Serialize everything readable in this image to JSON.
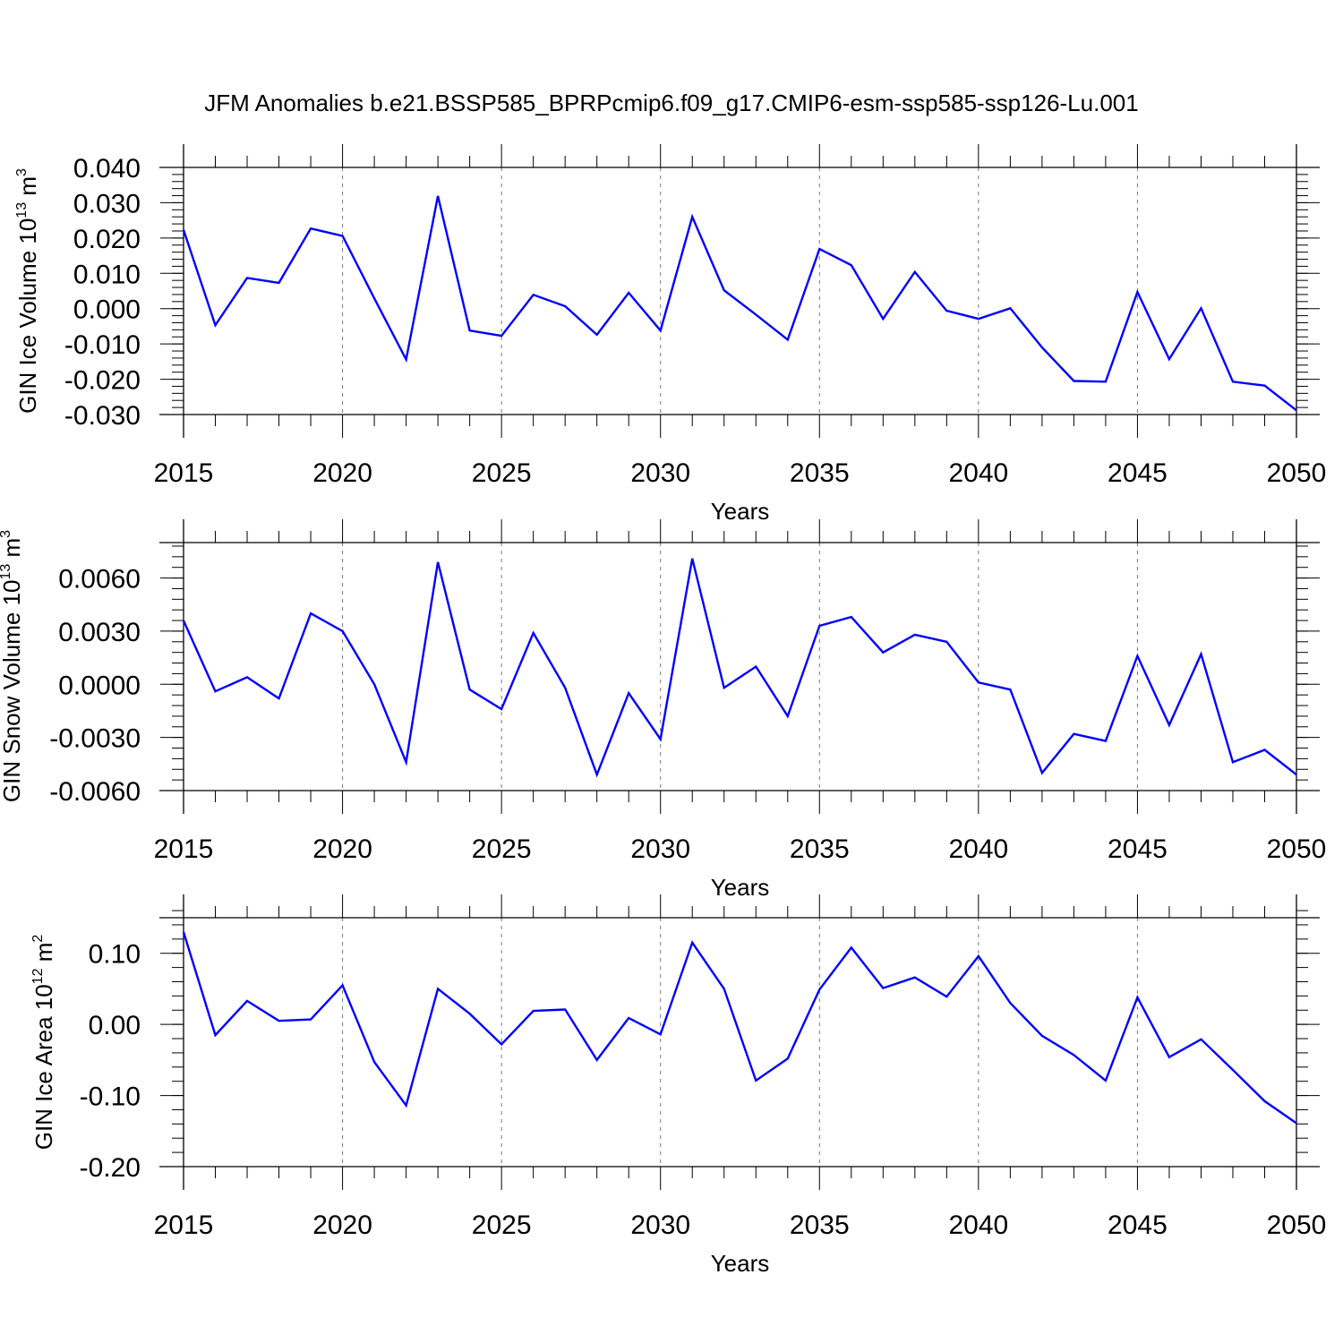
{
  "figure": {
    "title": "JFM Anomalies b.e21.BSSP585_BPRPcmip6.f09_g17.CMIP6-esm-ssp585-ssp126-Lu.001"
  },
  "chart_data": [
    {
      "type": "line",
      "xlabel": "Years",
      "ylabel_main": "GIN Ice Volume 10",
      "ylabel_exp": "13",
      "ylabel_unit": " m",
      "ylabel_unit_exp": "3",
      "xlim": [
        2015,
        2050
      ],
      "ylim": [
        -0.03,
        0.04
      ],
      "x_ticks": [
        2015,
        2020,
        2025,
        2030,
        2035,
        2040,
        2045,
        2050
      ],
      "y_ticks": [
        -0.03,
        -0.02,
        -0.01,
        0.0,
        0.01,
        0.02,
        0.03,
        0.04
      ],
      "y_tick_labels": [
        "-0.030",
        "-0.020",
        "-0.010",
        "0.000",
        "0.010",
        "0.020",
        "0.030",
        "0.040"
      ],
      "y_minor_step": 0.002,
      "grid": "vertical dashed at major x ticks",
      "series_color": "#0000ff",
      "x": [
        2015,
        2016,
        2017,
        2018,
        2019,
        2020,
        2021,
        2022,
        2023,
        2024,
        2025,
        2026,
        2027,
        2028,
        2029,
        2030,
        2031,
        2032,
        2033,
        2034,
        2035,
        2036,
        2037,
        2038,
        2039,
        2040,
        2041,
        2042,
        2043,
        2044,
        2045,
        2046,
        2047,
        2048,
        2049,
        2050
      ],
      "y": [
        0.0223,
        -0.0047,
        0.0087,
        0.0073,
        0.0227,
        0.0206,
        0.0029,
        -0.0144,
        0.0319,
        -0.0062,
        -0.0077,
        0.0039,
        0.0007,
        -0.0074,
        0.0045,
        -0.0062,
        0.026,
        0.0052,
        -0.0017,
        -0.0088,
        0.0169,
        0.0123,
        -0.0029,
        0.0104,
        -0.0006,
        -0.0029,
        0.0001,
        -0.011,
        -0.0205,
        -0.0207,
        0.0047,
        -0.0143,
        0.0001,
        -0.0207,
        -0.0218,
        -0.0288
      ]
    },
    {
      "type": "line",
      "xlabel": "Years",
      "ylabel_main": "GIN Snow Volume 10",
      "ylabel_exp": "13",
      "ylabel_unit": " m",
      "ylabel_unit_exp": "3",
      "xlim": [
        2015,
        2050
      ],
      "ylim": [
        -0.006,
        0.008
      ],
      "x_ticks": [
        2015,
        2020,
        2025,
        2030,
        2035,
        2040,
        2045,
        2050
      ],
      "y_ticks": [
        -0.006,
        -0.003,
        0.0,
        0.003,
        0.006
      ],
      "y_tick_labels": [
        "-0.0060",
        "-0.0030",
        "0.0000",
        "0.0030",
        "0.0060"
      ],
      "y_minor_step": 0.0006,
      "grid": "vertical dashed at major x ticks",
      "series_color": "#0000ff",
      "x": [
        2015,
        2016,
        2017,
        2018,
        2019,
        2020,
        2021,
        2022,
        2023,
        2024,
        2025,
        2026,
        2027,
        2028,
        2029,
        2030,
        2031,
        2032,
        2033,
        2034,
        2035,
        2036,
        2037,
        2038,
        2039,
        2040,
        2041,
        2042,
        2043,
        2044,
        2045,
        2046,
        2047,
        2048,
        2049,
        2050
      ],
      "y": [
        0.0036,
        -0.0004,
        0.0004,
        -0.0008,
        0.004,
        0.003,
        0.0,
        -0.0044,
        0.0069,
        -0.0003,
        -0.0014,
        0.0029,
        -0.0002,
        -0.0051,
        -0.0005,
        -0.0031,
        0.0071,
        -0.0002,
        0.001,
        -0.0018,
        0.0033,
        0.0038,
        0.0018,
        0.0028,
        0.0024,
        0.0001,
        -0.0003,
        -0.005,
        -0.0028,
        -0.0032,
        0.0016,
        -0.0023,
        0.0017,
        -0.0044,
        -0.0037,
        -0.0051
      ]
    },
    {
      "type": "line",
      "xlabel": "Years",
      "ylabel_main": "GIN Ice Area 10",
      "ylabel_exp": "12",
      "ylabel_unit": " m",
      "ylabel_unit_exp": "2",
      "xlim": [
        2015,
        2050
      ],
      "ylim": [
        -0.2,
        0.15
      ],
      "x_ticks": [
        2015,
        2020,
        2025,
        2030,
        2035,
        2040,
        2045,
        2050
      ],
      "y_ticks": [
        -0.2,
        -0.1,
        0.0,
        0.1
      ],
      "y_tick_labels": [
        "-0.20",
        "-0.10",
        "0.00",
        "0.10"
      ],
      "y_minor_step": 0.02,
      "grid": "vertical dashed at major x ticks",
      "series_color": "#0000ff",
      "x": [
        2015,
        2016,
        2017,
        2018,
        2019,
        2020,
        2021,
        2022,
        2023,
        2024,
        2025,
        2026,
        2027,
        2028,
        2029,
        2030,
        2031,
        2032,
        2033,
        2034,
        2035,
        2036,
        2037,
        2038,
        2039,
        2040,
        2041,
        2042,
        2043,
        2044,
        2045,
        2046,
        2047,
        2048,
        2049,
        2050
      ],
      "y": [
        0.13,
        -0.015,
        0.033,
        0.005,
        0.007,
        0.055,
        -0.053,
        -0.114,
        0.05,
        0.015,
        -0.028,
        0.019,
        0.021,
        -0.05,
        0.009,
        -0.014,
        0.115,
        0.05,
        -0.079,
        -0.048,
        0.049,
        0.108,
        0.051,
        0.066,
        0.039,
        0.096,
        0.03,
        -0.016,
        -0.043,
        -0.079,
        0.038,
        -0.046,
        -0.021,
        -0.064,
        -0.108,
        -0.139
      ]
    }
  ]
}
